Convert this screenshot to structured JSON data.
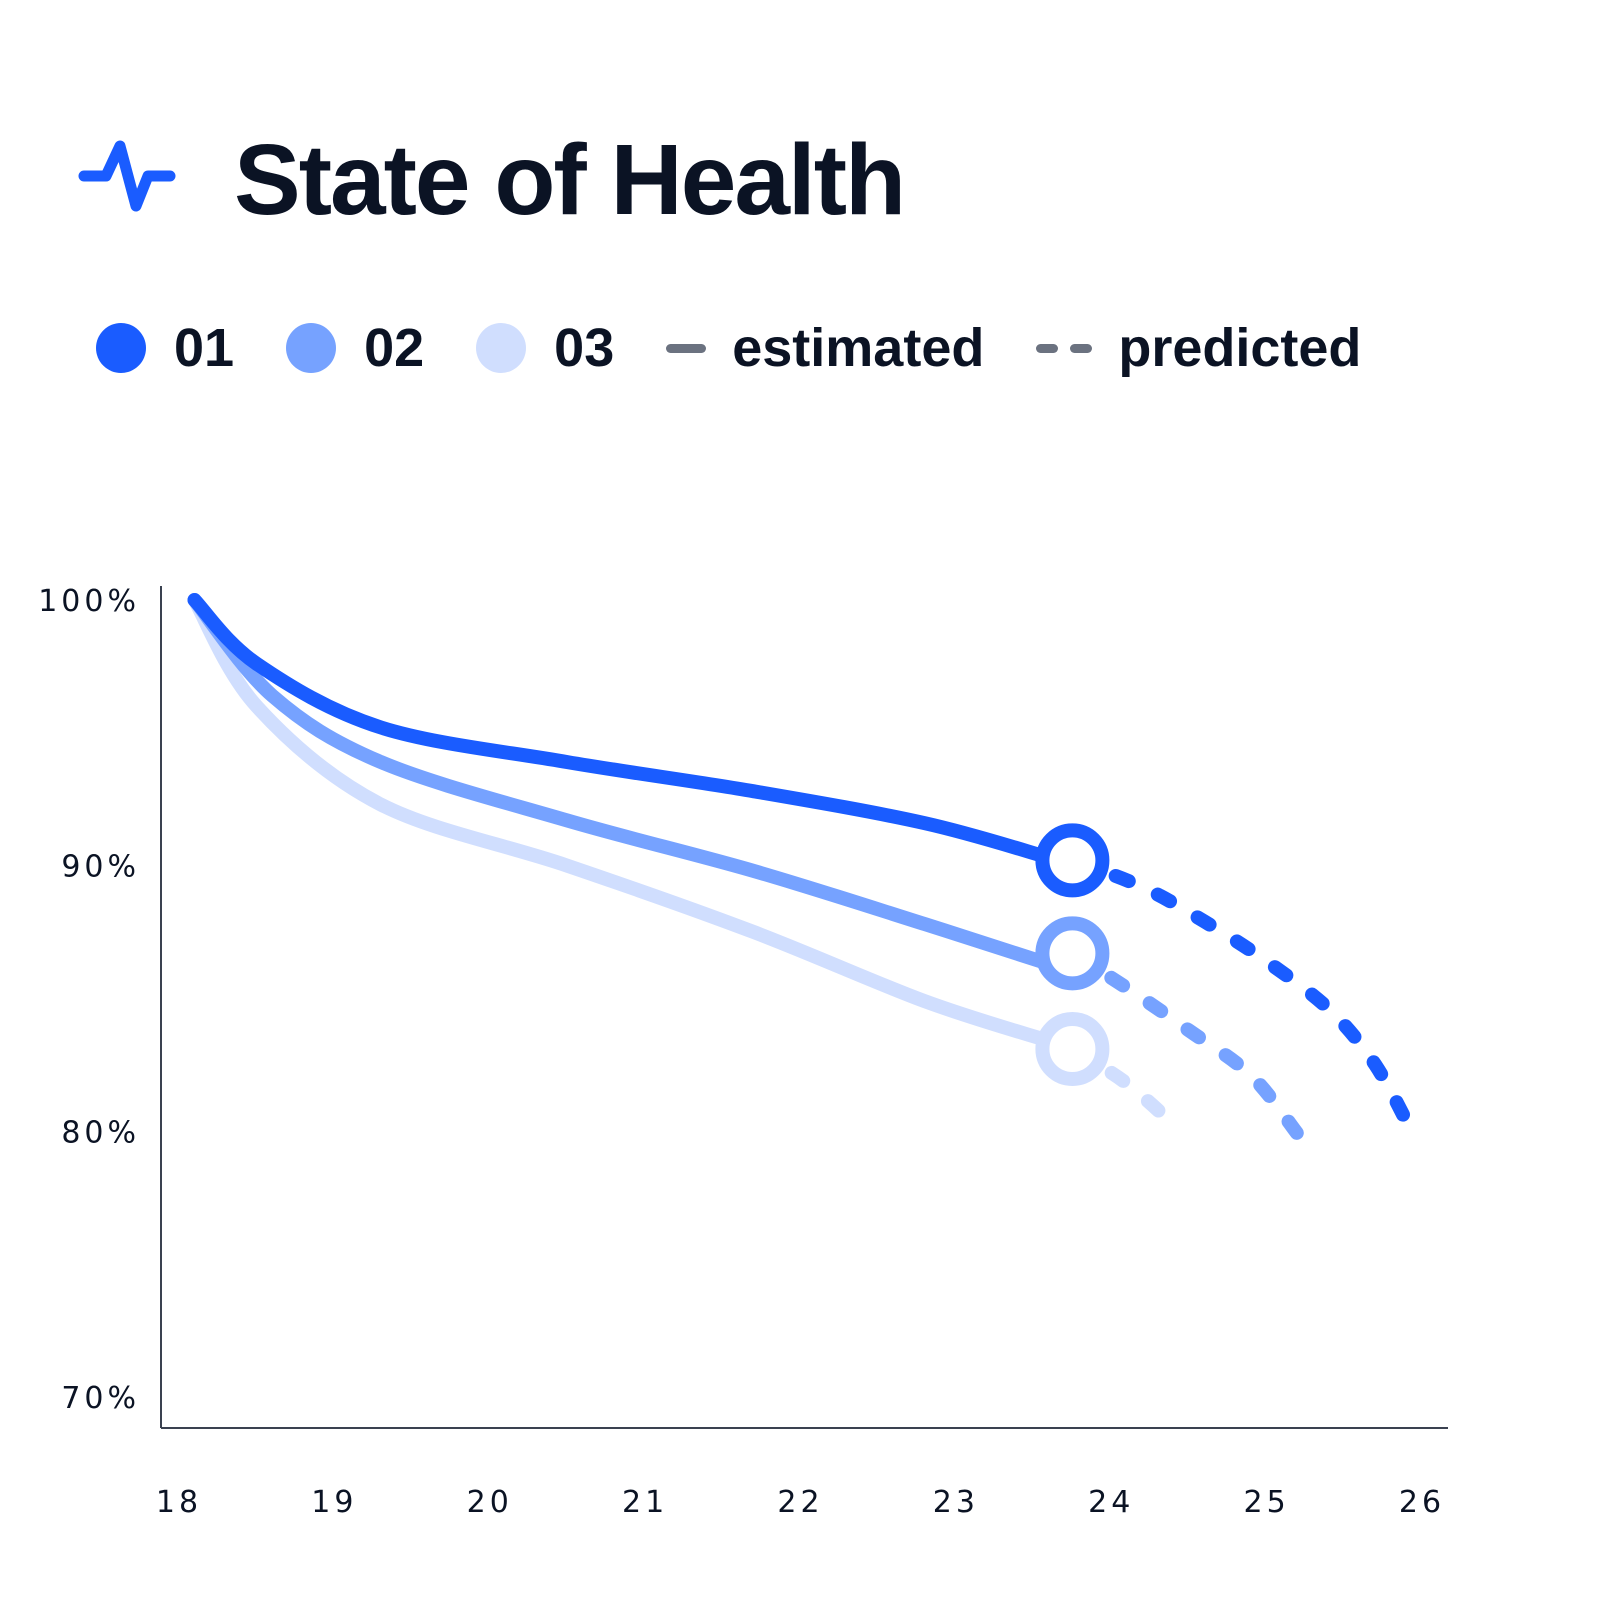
{
  "header": {
    "title": "State of Health",
    "icon": "pulse-icon",
    "accent": "#1a5cff"
  },
  "legend": {
    "series": [
      {
        "label": "01",
        "color": "#1a5cff"
      },
      {
        "label": "02",
        "color": "#76a2ff"
      },
      {
        "label": "03",
        "color": "#d0defe"
      }
    ],
    "estimated_label": "estimated",
    "predicted_label": "predicted",
    "line_color": "#6b7280"
  },
  "chart_data": {
    "type": "line",
    "title": "State of Health",
    "xlabel": "",
    "ylabel": "",
    "xlim": [
      18,
      26
    ],
    "ylim": [
      70,
      100
    ],
    "x_ticks": [
      "18",
      "19",
      "20",
      "21",
      "22",
      "23",
      "24",
      "25",
      "26"
    ],
    "y_ticks": [
      {
        "value": 100,
        "label": "100%"
      },
      {
        "value": 90,
        "label": "90%"
      },
      {
        "value": 80,
        "label": "80%"
      },
      {
        "value": 70,
        "label": "70%"
      }
    ],
    "series": [
      {
        "name": "01",
        "color": "#1a5cff",
        "estimated": [
          [
            18.1,
            100
          ],
          [
            18.5,
            97.6
          ],
          [
            19.3,
            95.2
          ],
          [
            20.5,
            93.9
          ],
          [
            21.7,
            92.8
          ],
          [
            22.8,
            91.6
          ],
          [
            23.6,
            90.3
          ]
        ],
        "current": [
          23.75,
          90.2
        ],
        "predicted": [
          [
            23.75,
            90.2
          ],
          [
            24.2,
            89.2
          ],
          [
            24.6,
            87.9
          ],
          [
            25.0,
            86.4
          ],
          [
            25.4,
            84.6
          ],
          [
            25.7,
            82.5
          ],
          [
            25.95,
            79.8
          ]
        ]
      },
      {
        "name": "02",
        "color": "#76a2ff",
        "estimated": [
          [
            18.1,
            100
          ],
          [
            18.6,
            96.4
          ],
          [
            19.3,
            93.9
          ],
          [
            20.5,
            91.7
          ],
          [
            21.7,
            89.8
          ],
          [
            22.8,
            87.8
          ],
          [
            23.6,
            86.3
          ]
        ],
        "current": [
          23.75,
          86.7
        ],
        "predicted": [
          [
            23.75,
            86.7
          ],
          [
            24.1,
            85.4
          ],
          [
            24.5,
            83.8
          ],
          [
            24.9,
            82.1
          ],
          [
            25.2,
            79.9
          ]
        ]
      },
      {
        "name": "03",
        "color": "#d0defe",
        "estimated": [
          [
            18.1,
            100
          ],
          [
            18.5,
            96.0
          ],
          [
            19.3,
            92.3
          ],
          [
            20.5,
            90.0
          ],
          [
            21.7,
            87.5
          ],
          [
            22.8,
            84.9
          ],
          [
            23.6,
            83.4
          ]
        ],
        "current": [
          23.75,
          83.1
        ],
        "predicted": [
          [
            23.75,
            83.1
          ],
          [
            24.1,
            81.8
          ],
          [
            24.45,
            80.0
          ]
        ]
      }
    ],
    "estimated_style": "solid",
    "predicted_style": "dashed",
    "grid": false,
    "legend_position": "top"
  }
}
